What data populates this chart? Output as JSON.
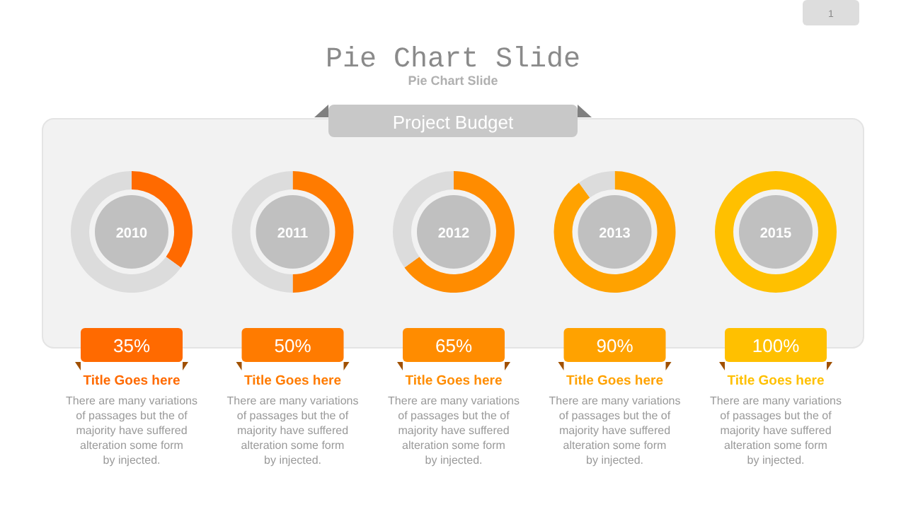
{
  "chart_data": [
    {
      "type": "other",
      "title": "Pie Chart Slide",
      "subtitle": "Pie Chart Slide",
      "annotations": [
        "Project Budget",
        "1"
      ]
    },
    {
      "type": "donut",
      "title": "2010",
      "categories": [
        null,
        null
      ],
      "values": [
        35,
        65
      ],
      "colors": [
        "#ff6a00",
        "#dcdcdc"
      ],
      "annotations": [
        "35%",
        "Title Goes here",
        "There are many variations\nof passages but the of\nmajority have suffered\nalteration some form\nby injected."
      ]
    },
    {
      "type": "donut",
      "title": "2011",
      "categories": [
        null,
        null
      ],
      "values": [
        50,
        50
      ],
      "colors": [
        "#ff7b00",
        "#dcdcdc"
      ],
      "annotations": [
        "50%",
        "Title Goes here",
        "There are many variations\nof passages but the of\nmajority have suffered\nalteration some form\nby injected."
      ]
    },
    {
      "type": "donut",
      "title": "2012",
      "categories": [
        null,
        null
      ],
      "values": [
        65,
        35
      ],
      "colors": [
        "#ff8c00",
        "#dcdcdc"
      ],
      "annotations": [
        "65%",
        "Title Goes here",
        "There are many variations\nof passages but the of\nmajority have suffered\nalteration some form\nby injected."
      ]
    },
    {
      "type": "donut",
      "title": "2013",
      "categories": [
        null,
        null
      ],
      "values": [
        90,
        10
      ],
      "colors": [
        "#ffa200",
        "#dcdcdc"
      ],
      "annotations": [
        "90%",
        "Title Goes here",
        "There are many variations\nof passages but the of\nmajority have suffered\nalteration some form\nby injected."
      ]
    },
    {
      "type": "donut",
      "title": "2015",
      "categories": [
        null
      ],
      "values": [
        100
      ],
      "colors": [
        "#ffc000"
      ],
      "annotations": [
        "100%",
        "Title Goes here",
        "There are many variations\nof passages but the of\nmajority have suffered\nalteration some form\nby injected."
      ]
    }
  ]
}
